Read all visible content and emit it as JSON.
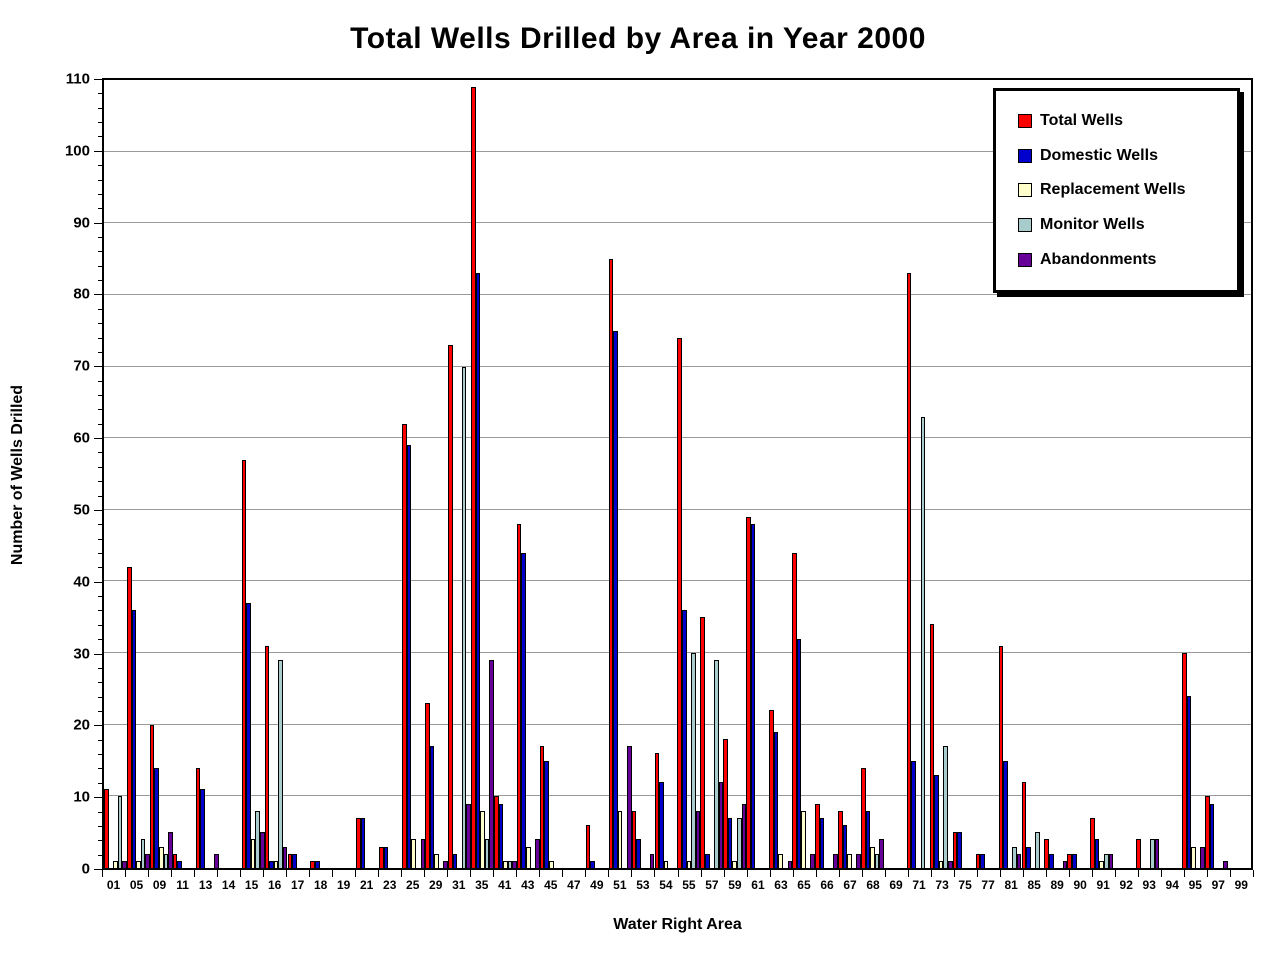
{
  "title": "Total Wells Drilled by Area in Year 2000",
  "chart_data": {
    "type": "bar",
    "title": "Total Wells Drilled by Area in Year 2000",
    "xlabel": "Water Right Area",
    "ylabel": "Number of Wells Drilled",
    "ylim": [
      0,
      110
    ],
    "yticks": [
      0,
      10,
      20,
      30,
      40,
      50,
      60,
      70,
      80,
      90,
      100,
      110
    ],
    "y_minor_tick_step": 2,
    "grid": true,
    "legend_position": "top-right",
    "background": "#ffffff",
    "gridline_color": "#9a9a9a",
    "categories": [
      "01",
      "05",
      "09",
      "11",
      "13",
      "14",
      "15",
      "16",
      "17",
      "18",
      "19",
      "21",
      "23",
      "25",
      "29",
      "31",
      "35",
      "41",
      "43",
      "45",
      "47",
      "49",
      "51",
      "53",
      "54",
      "55",
      "57",
      "59",
      "61",
      "63",
      "65",
      "66",
      "67",
      "68",
      "69",
      "71",
      "73",
      "75",
      "77",
      "81",
      "85",
      "89",
      "90",
      "91",
      "92",
      "93",
      "94",
      "95",
      "97",
      "99"
    ],
    "series": [
      {
        "name": "Total Wells",
        "color": "#FF0000",
        "values": [
          11,
          42,
          20,
          2,
          14,
          0,
          57,
          31,
          2,
          1,
          0,
          7,
          3,
          62,
          23,
          73,
          109,
          10,
          48,
          17,
          0,
          6,
          85,
          8,
          16,
          74,
          35,
          18,
          49,
          22,
          44,
          9,
          8,
          14,
          0,
          83,
          34,
          5,
          2,
          31,
          12,
          4,
          2,
          7,
          0,
          4,
          0,
          30,
          10,
          0
        ]
      },
      {
        "name": "Domestic Wells",
        "color": "#0000CC",
        "values": [
          0,
          36,
          14,
          1,
          11,
          0,
          37,
          1,
          2,
          1,
          0,
          7,
          3,
          59,
          17,
          2,
          83,
          9,
          44,
          15,
          0,
          1,
          75,
          4,
          12,
          36,
          2,
          7,
          48,
          19,
          32,
          7,
          6,
          8,
          0,
          15,
          13,
          5,
          2,
          15,
          3,
          2,
          2,
          4,
          0,
          0,
          0,
          24,
          9,
          0
        ]
      },
      {
        "name": "Replacement Wells",
        "color": "#FFFFCC",
        "values": [
          1,
          1,
          3,
          0,
          0,
          0,
          4,
          1,
          0,
          0,
          0,
          0,
          0,
          4,
          2,
          0,
          8,
          1,
          3,
          1,
          0,
          0,
          8,
          0,
          1,
          1,
          0,
          1,
          0,
          2,
          8,
          0,
          2,
          3,
          0,
          0,
          1,
          0,
          0,
          0,
          0,
          0,
          0,
          1,
          0,
          0,
          0,
          3,
          0,
          0
        ]
      },
      {
        "name": "Monitor Wells",
        "color": "#A8CCCC",
        "values": [
          10,
          4,
          2,
          0,
          0,
          0,
          8,
          29,
          0,
          0,
          0,
          0,
          0,
          0,
          0,
          70,
          4,
          1,
          0,
          0,
          0,
          0,
          0,
          0,
          0,
          30,
          29,
          7,
          0,
          0,
          0,
          0,
          0,
          2,
          0,
          63,
          17,
          0,
          0,
          3,
          5,
          0,
          0,
          2,
          0,
          4,
          0,
          0,
          0,
          0
        ]
      },
      {
        "name": "Abandonments",
        "color": "#660099",
        "values": [
          1,
          2,
          5,
          0,
          2,
          0,
          5,
          3,
          0,
          0,
          0,
          0,
          0,
          4,
          1,
          9,
          29,
          1,
          4,
          0,
          0,
          0,
          17,
          2,
          0,
          8,
          12,
          9,
          0,
          1,
          2,
          2,
          2,
          4,
          0,
          0,
          1,
          0,
          0,
          2,
          0,
          1,
          0,
          2,
          0,
          4,
          0,
          3,
          1,
          0
        ]
      }
    ]
  }
}
